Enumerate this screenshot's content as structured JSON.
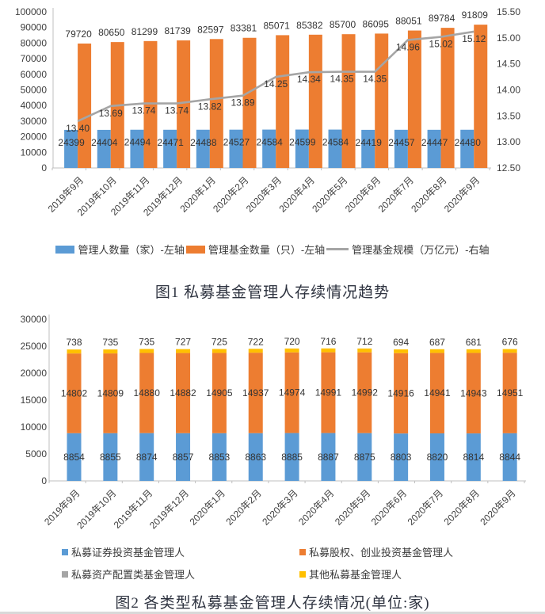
{
  "captions": {
    "fig1": "图1 私募基金管理人存续情况趋势",
    "fig2": "图2 各类型私募基金管理人存续情况(单位:家)"
  },
  "colors": {
    "blue": "#5B9BD5",
    "orange": "#ED7D31",
    "gray": "#A5A5A5",
    "yellow": "#FFC000",
    "axis_line": "#BFBFBF",
    "label_text": "#343434",
    "caption_text": "#2E3340"
  },
  "chart_data": [
    {
      "type": "bar",
      "subtype": "grouped-bar-with-line-combo",
      "title": "",
      "categories": [
        "2019年9月",
        "2019年10月",
        "2019年11月",
        "2019年12月",
        "2020年1月",
        "2020年2月",
        "2020年3月",
        "2020年4月",
        "2020年5月",
        "2020年6月",
        "2020年7月",
        "2020年8月",
        "2020年9月"
      ],
      "series": [
        {
          "name": "管理人数量（家）-左轴",
          "kind": "bar",
          "axis": "left",
          "color": "#5B9BD5",
          "values": [
            24399,
            24404,
            24494,
            24471,
            24488,
            24527,
            24584,
            24599,
            24584,
            24419,
            24457,
            24447,
            24480
          ]
        },
        {
          "name": "管理基金数量（只）-左轴",
          "kind": "bar",
          "axis": "left",
          "color": "#ED7D31",
          "values": [
            79720,
            80650,
            81299,
            81739,
            82597,
            83381,
            85071,
            85382,
            85700,
            86095,
            88051,
            89784,
            91809
          ]
        },
        {
          "name": "管理基金规模（万亿元）-右轴",
          "kind": "line",
          "axis": "right",
          "color": "#A5A5A5",
          "decimals": 2,
          "values": [
            13.4,
            13.69,
            13.74,
            13.74,
            13.82,
            13.89,
            14.25,
            14.34,
            14.35,
            14.35,
            14.96,
            15.02,
            15.12
          ]
        }
      ],
      "left_axis": {
        "min": 0,
        "max": 100000,
        "step": 10000
      },
      "right_axis": {
        "min": 12.5,
        "max": 15.5,
        "step": 0.5,
        "decimals": 2
      },
      "grid": false,
      "legend_position": "bottom",
      "data_labels": true
    },
    {
      "type": "bar",
      "subtype": "stacked-bar",
      "title": "",
      "categories": [
        "2019年9月",
        "2019年10月",
        "2019年11月",
        "2019年12月",
        "2020年1月",
        "2020年2月",
        "2020年3月",
        "2020年4月",
        "2020年5月",
        "2020年6月",
        "2020年7月",
        "2020年8月",
        "2020年9月"
      ],
      "series": [
        {
          "name": "私募证券投资基金管理人",
          "color": "#5B9BD5",
          "label_position": "inside",
          "values": [
            8854,
            8855,
            8874,
            8857,
            8853,
            8863,
            8885,
            8887,
            8875,
            8803,
            8820,
            8814,
            8844
          ]
        },
        {
          "name": "私募股权、创业投资基金管理人",
          "color": "#ED7D31",
          "label_position": "inside",
          "values": [
            14802,
            14809,
            14880,
            14882,
            14905,
            14937,
            14974,
            14991,
            14992,
            14916,
            14941,
            14943,
            14951
          ]
        },
        {
          "name": "私募资产配置类基金管理人",
          "color": "#A5A5A5",
          "label_position": "none",
          "values": [],
          "segment_visible": false
        },
        {
          "name": "其他私募基金管理人",
          "color": "#FFC000",
          "label_position": "above-total",
          "values": [
            738,
            735,
            735,
            727,
            725,
            722,
            720,
            716,
            712,
            694,
            687,
            681,
            676
          ]
        }
      ],
      "left_axis": {
        "min": 0,
        "max": 30000,
        "step": 5000
      },
      "grid": false,
      "legend_position": "bottom",
      "data_labels": true
    }
  ]
}
